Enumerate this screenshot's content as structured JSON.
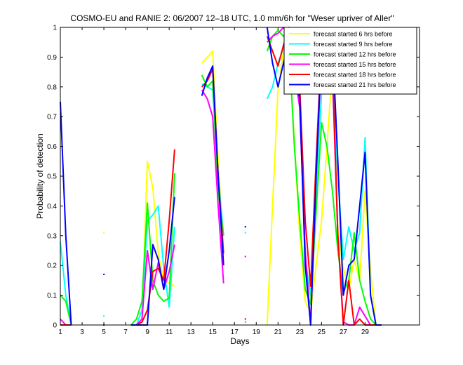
{
  "chart_data": {
    "type": "line",
    "title": "COSMO-EU and RANIE 2: 06/2007 12–18 UTC, 1.0 mm/6h for \"Weser upriver of Aller\"",
    "xlabel": "Days",
    "ylabel": "Probability of detection",
    "xlim": [
      1,
      34
    ],
    "ylim": [
      0,
      1
    ],
    "xticks": [
      1,
      3,
      5,
      7,
      9,
      11,
      13,
      15,
      17,
      19,
      21,
      23,
      25,
      27,
      29
    ],
    "xtick_labels": [
      "1",
      "3",
      "5",
      "7",
      "9",
      "11",
      "13",
      "15",
      "17",
      "19",
      "21",
      "23",
      "25",
      "27",
      "29"
    ],
    "yticks": [
      0,
      0.1,
      0.2,
      0.3,
      0.4,
      0.5,
      0.6,
      0.7,
      0.8,
      0.9,
      1
    ],
    "ytick_labels": [
      "0",
      "0.1",
      "0.2",
      "0.3",
      "0.4",
      "0.5",
      "0.6",
      "0.7",
      "0.8",
      "0.9",
      "1"
    ],
    "legend_position": "top-right",
    "grid": false,
    "series": [
      {
        "name": "forecast started 6 hrs before",
        "color": "#ffff00",
        "segments": [
          [
            [
              1,
              0.0
            ],
            [
              1.5,
              0.0
            ],
            [
              2,
              0.0
            ]
          ],
          [
            [
              5,
              0.31
            ]
          ],
          [
            [
              7.5,
              0.0
            ],
            [
              8,
              0.0
            ],
            [
              8.5,
              0.02
            ],
            [
              9,
              0.55
            ],
            [
              9.5,
              0.46
            ],
            [
              10,
              0.24
            ],
            [
              10.5,
              0.15
            ],
            [
              11,
              0.14
            ],
            [
              11.5,
              0.13
            ]
          ],
          [
            [
              14,
              0.88
            ],
            [
              14.5,
              0.9
            ],
            [
              15,
              0.92
            ],
            [
              15.5,
              0.55
            ],
            [
              16,
              0.25
            ]
          ],
          [
            [
              18,
              0.02
            ]
          ],
          [
            [
              20,
              0.0
            ],
            [
              20.5,
              0.4
            ],
            [
              21,
              0.79
            ],
            [
              21.5,
              0.92
            ],
            [
              22,
              0.93
            ],
            [
              22.5,
              0.62
            ],
            [
              23,
              0.3
            ],
            [
              23.5,
              0.08
            ],
            [
              24,
              0.04
            ],
            [
              24.5,
              0.2
            ],
            [
              25,
              0.35
            ],
            [
              25.5,
              0.6
            ],
            [
              26,
              0.87
            ],
            [
              26.5,
              0.32
            ],
            [
              27,
              0.19
            ],
            [
              27.5,
              0.12
            ],
            [
              28,
              0.22
            ],
            [
              28.5,
              0.15
            ],
            [
              29,
              0.45
            ],
            [
              29.5,
              0.18
            ],
            [
              30,
              0.0
            ],
            [
              30.5,
              0.0
            ]
          ]
        ]
      },
      {
        "name": "forecast started 9 hrs before",
        "color": "#00ffff",
        "segments": [
          [
            [
              1,
              0.28
            ],
            [
              1.5,
              0.1
            ],
            [
              2,
              0.0
            ]
          ],
          [
            [
              5,
              0.03
            ]
          ],
          [
            [
              7.5,
              0.0
            ],
            [
              8,
              0.0
            ],
            [
              8.5,
              0.05
            ],
            [
              9,
              0.35
            ],
            [
              9.5,
              0.37
            ],
            [
              10,
              0.4
            ],
            [
              10.5,
              0.19
            ],
            [
              11,
              0.06
            ],
            [
              11.5,
              0.33
            ]
          ],
          [
            [
              14,
              0.81
            ],
            [
              14.5,
              0.8
            ],
            [
              15,
              0.79
            ],
            [
              15.5,
              0.5
            ],
            [
              16,
              0.3
            ]
          ],
          [
            [
              18,
              0.31
            ]
          ],
          [
            [
              20,
              0.76
            ],
            [
              20.5,
              0.8
            ],
            [
              21,
              0.88
            ],
            [
              21.5,
              0.93
            ],
            [
              22,
              0.9
            ],
            [
              22.5,
              0.84
            ],
            [
              23,
              0.75
            ],
            [
              23.5,
              0.22
            ],
            [
              24,
              0.1
            ],
            [
              24.5,
              0.45
            ],
            [
              25,
              0.78
            ],
            [
              25.5,
              0.82
            ],
            [
              26,
              0.85
            ],
            [
              26.5,
              0.5
            ],
            [
              27,
              0.22
            ],
            [
              27.5,
              0.33
            ],
            [
              28,
              0.25
            ],
            [
              28.5,
              0.31
            ],
            [
              29,
              0.63
            ],
            [
              29.5,
              0.1
            ],
            [
              30,
              0.0
            ],
            [
              30.5,
              0.0
            ]
          ]
        ]
      },
      {
        "name": "forecast started 12 hrs before",
        "color": "#00ff00",
        "segments": [
          [
            [
              1,
              0.1
            ],
            [
              1.5,
              0.08
            ],
            [
              2,
              0.0
            ]
          ],
          [
            [
              5,
              0.0
            ]
          ],
          [
            [
              7.5,
              0.0
            ],
            [
              8,
              0.02
            ],
            [
              8.5,
              0.08
            ],
            [
              9,
              0.41
            ],
            [
              9.5,
              0.15
            ],
            [
              10,
              0.1
            ],
            [
              10.5,
              0.08
            ],
            [
              11,
              0.09
            ],
            [
              11.5,
              0.51
            ]
          ],
          [
            [
              14,
              0.84
            ],
            [
              14.5,
              0.8
            ],
            [
              15,
              0.82
            ],
            [
              15.5,
              0.45
            ],
            [
              16,
              0.3
            ]
          ],
          [
            [
              18,
              0.01
            ]
          ],
          [
            [
              20,
              0.92
            ],
            [
              20.5,
              0.97
            ],
            [
              21,
              0.99
            ],
            [
              21.5,
              0.97
            ],
            [
              22,
              0.95
            ],
            [
              22.5,
              0.6
            ],
            [
              23,
              0.35
            ],
            [
              23.5,
              0.12
            ],
            [
              24,
              0.07
            ],
            [
              24.5,
              0.38
            ],
            [
              25,
              0.68
            ],
            [
              25.5,
              0.6
            ],
            [
              26,
              0.45
            ],
            [
              26.5,
              0.25
            ],
            [
              27,
              0.11
            ],
            [
              27.5,
              0.15
            ],
            [
              28,
              0.31
            ],
            [
              28.5,
              0.15
            ],
            [
              29,
              0.08
            ],
            [
              29.5,
              0.02
            ],
            [
              30,
              0.0
            ],
            [
              30.5,
              0.0
            ]
          ]
        ]
      },
      {
        "name": "forecast started 15 hrs before",
        "color": "#ff00ff",
        "segments": [
          [
            [
              1,
              0.02
            ],
            [
              1.5,
              0.0
            ],
            [
              2,
              0.0
            ]
          ],
          [
            [
              5,
              0.0
            ]
          ],
          [
            [
              7.5,
              0.0
            ],
            [
              8,
              0.0
            ],
            [
              8.5,
              0.02
            ],
            [
              9,
              0.25
            ],
            [
              9.5,
              0.12
            ],
            [
              10,
              0.21
            ],
            [
              10.5,
              0.12
            ],
            [
              11,
              0.18
            ],
            [
              11.5,
              0.27
            ]
          ],
          [
            [
              14,
              0.79
            ],
            [
              14.5,
              0.76
            ],
            [
              15,
              0.7
            ],
            [
              15.5,
              0.4
            ],
            [
              16,
              0.14
            ]
          ],
          [
            [
              18,
              0.23
            ]
          ],
          [
            [
              20,
              0.95
            ],
            [
              20.5,
              0.97
            ],
            [
              21,
              0.98
            ],
            [
              21.5,
              1.0
            ],
            [
              22,
              0.97
            ],
            [
              22.5,
              0.85
            ],
            [
              23,
              0.73
            ],
            [
              23.5,
              0.25
            ],
            [
              24,
              0.0
            ],
            [
              24.5,
              0.5
            ],
            [
              25,
              0.91
            ],
            [
              25.5,
              0.89
            ],
            [
              26,
              0.84
            ],
            [
              26.5,
              0.3
            ],
            [
              27,
              0.01
            ],
            [
              27.5,
              0.0
            ],
            [
              28,
              0.0
            ],
            [
              28.5,
              0.06
            ],
            [
              29,
              0.03
            ],
            [
              29.5,
              0.0
            ],
            [
              30,
              0.0
            ],
            [
              30.5,
              0.0
            ]
          ]
        ]
      },
      {
        "name": "forecast started 18 hrs before",
        "color": "#ff0000",
        "segments": [
          [
            [
              1,
              0.0
            ],
            [
              1.5,
              0.0
            ],
            [
              2,
              0.0
            ]
          ],
          [
            [
              5,
              0.0
            ]
          ],
          [
            [
              7.5,
              0.0
            ],
            [
              8,
              0.0
            ],
            [
              8.5,
              0.01
            ],
            [
              9,
              0.05
            ],
            [
              9.5,
              0.18
            ],
            [
              10,
              0.19
            ],
            [
              10.5,
              0.15
            ],
            [
              11,
              0.35
            ],
            [
              11.5,
              0.59
            ]
          ],
          [
            [
              14,
              0.8
            ],
            [
              14.5,
              0.82
            ],
            [
              15,
              0.86
            ],
            [
              15.5,
              0.5
            ],
            [
              16,
              0.24
            ]
          ],
          [
            [
              18,
              0.02
            ]
          ],
          [
            [
              20,
              0.97
            ],
            [
              20.5,
              0.92
            ],
            [
              21,
              0.87
            ],
            [
              21.5,
              0.94
            ],
            [
              22,
              1.0
            ],
            [
              22.5,
              0.9
            ],
            [
              23,
              0.8
            ],
            [
              23.5,
              0.35
            ],
            [
              24,
              0.13
            ],
            [
              24.5,
              0.55
            ],
            [
              25,
              0.95
            ],
            [
              25.5,
              0.93
            ],
            [
              26,
              0.88
            ],
            [
              26.5,
              0.3
            ],
            [
              27,
              0.0
            ],
            [
              27.5,
              0.15
            ],
            [
              28,
              0.0
            ],
            [
              28.5,
              0.02
            ],
            [
              29,
              0.0
            ],
            [
              29.5,
              0.0
            ],
            [
              30,
              0.0
            ],
            [
              30.5,
              0.0
            ]
          ]
        ]
      },
      {
        "name": "forecast started 21 hrs before",
        "color": "#0000ff",
        "segments": [
          [
            [
              1,
              0.75
            ],
            [
              1.5,
              0.3
            ],
            [
              2,
              0.0
            ]
          ],
          [
            [
              5,
              0.17
            ]
          ],
          [
            [
              7.5,
              0.0
            ],
            [
              8,
              0.0
            ],
            [
              8.5,
              0.0
            ],
            [
              9,
              0.0
            ],
            [
              9.5,
              0.27
            ],
            [
              10,
              0.22
            ],
            [
              10.5,
              0.12
            ],
            [
              11,
              0.25
            ],
            [
              11.5,
              0.43
            ]
          ],
          [
            [
              14,
              0.77
            ],
            [
              14.5,
              0.83
            ],
            [
              15,
              0.87
            ],
            [
              15.5,
              0.5
            ],
            [
              16,
              0.2
            ]
          ],
          [
            [
              18,
              0.33
            ]
          ],
          [
            [
              20,
              1.0
            ],
            [
              20.5,
              0.88
            ],
            [
              21,
              0.8
            ],
            [
              21.5,
              0.88
            ],
            [
              22,
              0.96
            ],
            [
              22.5,
              0.86
            ],
            [
              23,
              0.76
            ],
            [
              23.5,
              0.2
            ],
            [
              24,
              0.0
            ],
            [
              24.5,
              0.5
            ],
            [
              25,
              0.94
            ],
            [
              25.5,
              0.95
            ],
            [
              26,
              0.95
            ],
            [
              26.5,
              0.55
            ],
            [
              27,
              0.1
            ],
            [
              27.5,
              0.2
            ],
            [
              28,
              0.22
            ],
            [
              28.5,
              0.4
            ],
            [
              29,
              0.58
            ],
            [
              29.5,
              0.1
            ],
            [
              30,
              0.0
            ],
            [
              30.5,
              0.0
            ]
          ]
        ]
      }
    ]
  }
}
